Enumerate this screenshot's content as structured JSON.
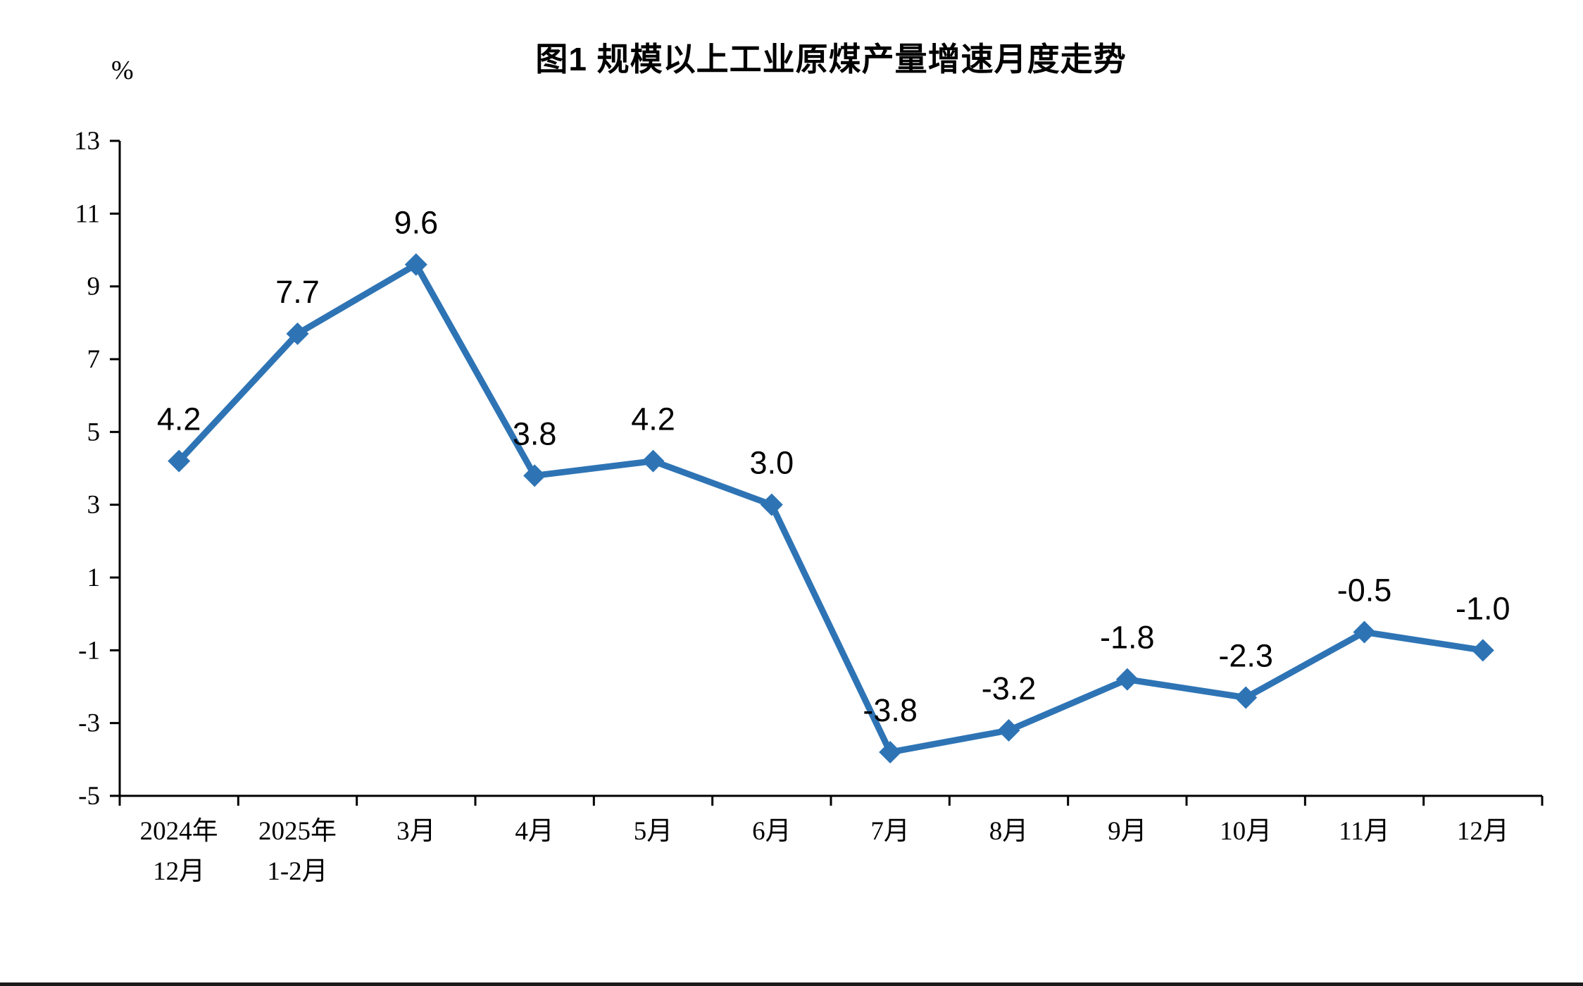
{
  "page": {
    "background": "#ffffff"
  },
  "chart_data": {
    "type": "line",
    "title": "图1  规模以上工业原煤产量增速月度走势",
    "unit_label": "%",
    "categories": [
      "2024年\n12月",
      "2025年\n1-2月",
      "3月",
      "4月",
      "5月",
      "6月",
      "7月",
      "8月",
      "9月",
      "10月",
      "11月",
      "12月"
    ],
    "values": [
      4.2,
      7.7,
      9.6,
      3.8,
      4.2,
      3.0,
      -3.8,
      -3.2,
      -1.8,
      -2.3,
      -0.5,
      -1.0
    ],
    "data_labels": [
      "4.2",
      "7.7",
      "9.6",
      "3.8",
      "4.2",
      "3.0",
      "-3.8",
      "-3.2",
      "-1.8",
      "-2.3",
      "-0.5",
      "-1.0"
    ],
    "ylim": [
      -5,
      13
    ],
    "yticks": [
      13,
      11,
      9,
      7,
      5,
      3,
      1,
      -1,
      -3,
      -5
    ],
    "ytick_step": 2,
    "line_color": "#2E74B5",
    "marker": "diamond",
    "grid": false,
    "legend": "none"
  }
}
